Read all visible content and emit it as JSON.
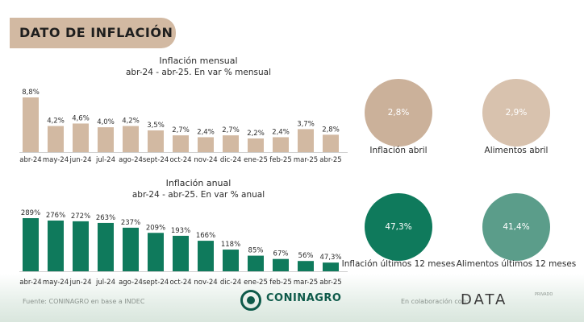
{
  "header": {
    "title": "DATO DE INFLACIÓN"
  },
  "colors": {
    "banner": "#d2b9a2",
    "monthly_bar": "#d2b9a2",
    "annual_bar": "#0f7a5c",
    "circle_monthly": "#cbb19a",
    "circle_food_monthly": "#d8c2ae",
    "circle_annual": "#0f7a5c",
    "circle_food_annual": "#5b9d8a",
    "brand": "#0e5a4a"
  },
  "chart_data": [
    {
      "type": "bar",
      "title": "Inflación mensual",
      "subtitle": "abr-24 - abr-25. En var % mensual",
      "categories": [
        "abr-24",
        "may-24",
        "jun-24",
        "jul-24",
        "ago-24",
        "sept-24",
        "oct-24",
        "nov-24",
        "dic-24",
        "ene-25",
        "feb-25",
        "mar-25",
        "abr-25"
      ],
      "values": [
        8.8,
        4.2,
        4.6,
        4.0,
        4.2,
        3.5,
        2.7,
        2.4,
        2.7,
        2.2,
        2.4,
        3.7,
        2.8
      ],
      "value_labels": [
        "8,8%",
        "4,2%",
        "4,6%",
        "4,0%",
        "4,2%",
        "3,5%",
        "2,7%",
        "2,4%",
        "2,7%",
        "2,2%",
        "2,4%",
        "3,7%",
        "2,8%"
      ],
      "ylim": [
        0,
        8.8
      ],
      "grid": false,
      "legend": "none"
    },
    {
      "type": "bar",
      "title": "Inflación anual",
      "subtitle": "abr-24 - abr-25. En var % anual",
      "categories": [
        "abr-24",
        "may-24",
        "jun-24",
        "jul-24",
        "ago-24",
        "sept-24",
        "oct-24",
        "nov-24",
        "dic-24",
        "ene-25",
        "feb-25",
        "mar-25",
        "abr-25"
      ],
      "values": [
        289,
        276,
        272,
        263,
        237,
        209,
        193,
        166,
        118,
        85,
        67,
        56,
        47.3
      ],
      "value_labels": [
        "289%",
        "276%",
        "272%",
        "263%",
        "237%",
        "209%",
        "193%",
        "166%",
        "118%",
        "85%",
        "67%",
        "56%",
        "47,3%"
      ],
      "ylim": [
        0,
        289
      ],
      "grid": false,
      "legend": "none"
    }
  ],
  "kpis": [
    {
      "value": "2,8%",
      "label": "Inflación abril"
    },
    {
      "value": "2,9%",
      "label": "Alimentos abril"
    },
    {
      "value": "47,3%",
      "label": "Inflación últimos 12 meses"
    },
    {
      "value": "41,4%",
      "label": "Alimentos últimos 12 meses"
    }
  ],
  "footer": {
    "source": "Fuente: CONINAGRO en base a INDEC",
    "brand": "CONINAGRO",
    "collab": "En colaboración con:",
    "partner": "DATA",
    "partner_sub": "PRIVADO"
  }
}
